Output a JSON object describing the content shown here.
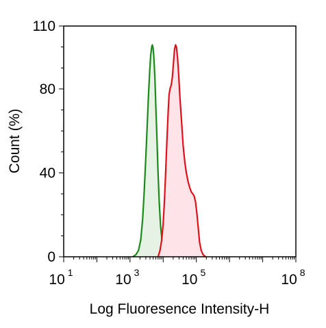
{
  "chart_data": {
    "type": "area",
    "title": "",
    "xlabel": "Log Fluoresence Intensity-H",
    "ylabel": "Count  (%)",
    "x_scale": "log",
    "xlim": [
      10,
      100000000
    ],
    "ylim": [
      0,
      110
    ],
    "grid": false,
    "legend": "none",
    "x_ticks": [
      {
        "value": 10,
        "base": "10",
        "exp": "1"
      },
      {
        "value": 1000,
        "base": "10",
        "exp": "3"
      },
      {
        "value": 100000,
        "base": "10",
        "exp": "5"
      },
      {
        "value": 100000000,
        "base": "10",
        "exp": "8"
      }
    ],
    "y_ticks": [
      {
        "value": 0,
        "label": "0"
      },
      {
        "value": 40,
        "label": "40"
      },
      {
        "value": 80,
        "label": "80"
      },
      {
        "value": 110,
        "label": "110"
      }
    ],
    "series": [
      {
        "color": "#1a8a1a",
        "fill": "#e6f2e3",
        "points": [
          [
            1200,
            0
          ],
          [
            1500,
            1
          ],
          [
            1800,
            3
          ],
          [
            2100,
            8
          ],
          [
            2400,
            18
          ],
          [
            2700,
            32
          ],
          [
            3000,
            48
          ],
          [
            3300,
            63
          ],
          [
            3600,
            77
          ],
          [
            3900,
            88
          ],
          [
            4200,
            96
          ],
          [
            4500,
            100
          ],
          [
            4700,
            101
          ],
          [
            4900,
            100
          ],
          [
            5200,
            96
          ],
          [
            5600,
            86
          ],
          [
            6000,
            72
          ],
          [
            6500,
            56
          ],
          [
            7000,
            40
          ],
          [
            7600,
            26
          ],
          [
            8300,
            15
          ],
          [
            9200,
            8
          ],
          [
            10500,
            4
          ],
          [
            12000,
            1
          ],
          [
            14000,
            0
          ]
        ]
      },
      {
        "color": "#e0101a",
        "fill": "#fde4e8",
        "points": [
          [
            7000,
            0
          ],
          [
            8000,
            3
          ],
          [
            9000,
            8
          ],
          [
            10000,
            16
          ],
          [
            11000,
            28
          ],
          [
            12000,
            42
          ],
          [
            13000,
            56
          ],
          [
            14000,
            68
          ],
          [
            15000,
            77
          ],
          [
            16000,
            80
          ],
          [
            17500,
            82
          ],
          [
            19000,
            86
          ],
          [
            20500,
            93
          ],
          [
            22000,
            99
          ],
          [
            23500,
            101
          ],
          [
            25000,
            100
          ],
          [
            27000,
            95
          ],
          [
            29000,
            88
          ],
          [
            32000,
            76
          ],
          [
            36000,
            64
          ],
          [
            40000,
            53
          ],
          [
            45000,
            45
          ],
          [
            50000,
            40
          ],
          [
            56000,
            36
          ],
          [
            63000,
            33
          ],
          [
            70000,
            31
          ],
          [
            78000,
            30
          ],
          [
            86000,
            29
          ],
          [
            95000,
            26
          ],
          [
            105000,
            20
          ],
          [
            115000,
            13
          ],
          [
            125000,
            7
          ],
          [
            140000,
            3
          ],
          [
            160000,
            1
          ],
          [
            190000,
            0
          ]
        ]
      }
    ]
  }
}
